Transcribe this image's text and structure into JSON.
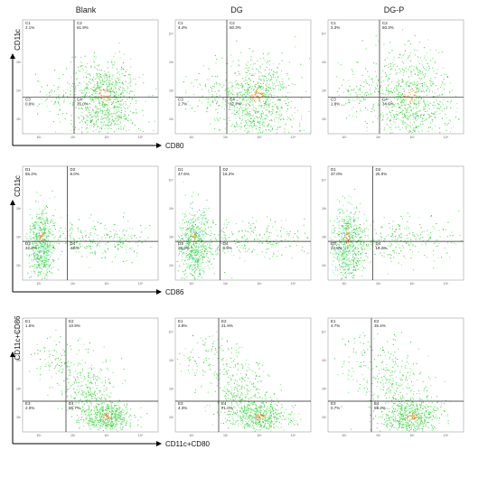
{
  "colors": {
    "background": "#ffffff",
    "frame": "#8a8a8a",
    "quadrant_line": "#222222",
    "dots": [
      "#3bd93b",
      "#56e856",
      "#7fea7f",
      "#2fbf3a"
    ],
    "dense": [
      "#d8c23a",
      "#e2a13a",
      "#cc5a2a"
    ],
    "cyan": "#7fe8ff"
  },
  "chart_data": {
    "type": "scatter",
    "column_titles": [
      "Blank",
      "DG",
      "DG-P"
    ],
    "rows": [
      {
        "ylabel": "CD11c",
        "xlabel": "CD80",
        "tick_labels": [
          "10¹",
          "10²",
          "10³",
          "10⁴"
        ],
        "panels": [
          {
            "quadrants": [
              {
                "name": "C1",
                "percent": "2.1%"
              },
              {
                "name": "C2",
                "percent": "61.9%"
              },
              {
                "name": "C3",
                "percent": "0.9%"
              },
              {
                "name": "C4",
                "percent": "35.0%"
              }
            ]
          },
          {
            "quadrants": [
              {
                "name": "C1",
                "percent": "4.4%"
              },
              {
                "name": "C2",
                "percent": "60.3%"
              },
              {
                "name": "C3",
                "percent": "2.7%"
              },
              {
                "name": "C4",
                "percent": "32.7%"
              }
            ]
          },
          {
            "quadrants": [
              {
                "name": "C1",
                "percent": "3.3%"
              },
              {
                "name": "C2",
                "percent": "60.3%"
              },
              {
                "name": "C3",
                "percent": "1.8%"
              },
              {
                "name": "C4",
                "percent": "34.6%"
              }
            ]
          }
        ]
      },
      {
        "ylabel": "CD11c",
        "xlabel": "CD86",
        "tick_labels": [
          "10¹",
          "10²",
          "10³",
          "10⁴"
        ],
        "panels": [
          {
            "quadrants": [
              {
                "name": "D1",
                "percent": "55.2%"
              },
              {
                "name": "D2",
                "percent": "8.0%"
              },
              {
                "name": "D3",
                "percent": "32.2%"
              },
              {
                "name": "D4",
                "percent": "4.6%"
              }
            ]
          },
          {
            "quadrants": [
              {
                "name": "D1",
                "percent": "47.6%"
              },
              {
                "name": "D2",
                "percent": "16.2%"
              },
              {
                "name": "D3",
                "percent": "26.2%"
              },
              {
                "name": "D4",
                "percent": "9.9%"
              }
            ]
          },
          {
            "quadrants": [
              {
                "name": "D1",
                "percent": "37.0%"
              },
              {
                "name": "D2",
                "percent": "25.0%"
              },
              {
                "name": "D3",
                "percent": "22.8%"
              },
              {
                "name": "D4",
                "percent": "15.2%"
              }
            ]
          }
        ]
      },
      {
        "ylabel": "CD11c+CD86",
        "xlabel": "CD11c+CD80",
        "tick_labels": [
          "10¹",
          "10²",
          "10³",
          "10⁴"
        ],
        "panels": [
          {
            "quadrants": [
              {
                "name": "E1",
                "percent": "1.5%"
              },
              {
                "name": "E2",
                "percent": "10.9%"
              },
              {
                "name": "E3",
                "percent": "2.0%"
              },
              {
                "name": "E4",
                "percent": "85.7%"
              }
            ]
          },
          {
            "quadrants": [
              {
                "name": "E1",
                "percent": "2.8%"
              },
              {
                "name": "E2",
                "percent": "21.9%"
              },
              {
                "name": "E3",
                "percent": "4.3%"
              },
              {
                "name": "E4",
                "percent": "71.0%"
              }
            ]
          },
          {
            "quadrants": [
              {
                "name": "E1",
                "percent": "4.7%"
              },
              {
                "name": "E2",
                "percent": "35.4%"
              },
              {
                "name": "E3",
                "percent": "0.7%"
              },
              {
                "name": "E4",
                "percent": "59.2%"
              }
            ]
          }
        ]
      }
    ]
  }
}
